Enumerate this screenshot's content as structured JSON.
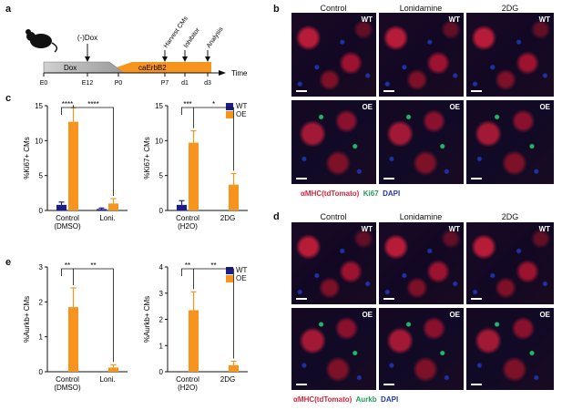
{
  "panels": {
    "a": "a",
    "b": "b",
    "c": "c",
    "d": "d",
    "e": "e"
  },
  "timeline": {
    "dox_marker": "(-)Dox",
    "dox_bar": "Dox",
    "caerbb2_bar": "caErbB2",
    "harvest": "Harvest CMs",
    "inhibitor": "Inhibitor",
    "analysis": "Analysis",
    "time_label": "Time",
    "ticks": [
      "E0",
      "E12",
      "P0",
      "P7",
      "d1",
      "d3"
    ]
  },
  "legend": {
    "wt": "WT",
    "oe": "OE",
    "wt_color": "#1c1c8c",
    "oe_color": "#f7941d"
  },
  "micro_b": {
    "columns": [
      "Control",
      "Lonidamine",
      "2DG"
    ],
    "row_labels": [
      "WT",
      "OE"
    ],
    "caption_red": "αMHC(tdTomato)",
    "caption_green": "Ki67",
    "caption_blue": "DAPI"
  },
  "micro_d": {
    "columns": [
      "Control",
      "Lonidamine",
      "2DG"
    ],
    "row_labels": [
      "WT",
      "OE"
    ],
    "caption_red": "αMHC(tdTomato)",
    "caption_green": "Aurkb",
    "caption_blue": "DAPI"
  },
  "chart_data": [
    {
      "type": "bar",
      "panel": "c-left",
      "ylabel": "%Ki67+ CMs",
      "ylim": [
        0,
        15
      ],
      "yticks": [
        0,
        5,
        10,
        15
      ],
      "categories": [
        "Control\n(DMSO)",
        "Loni."
      ],
      "series": [
        {
          "name": "WT",
          "values": [
            0.8,
            0.2
          ],
          "errors": [
            0.4,
            0.15
          ]
        },
        {
          "name": "OE",
          "values": [
            12.7,
            1.0
          ],
          "errors": [
            2.0,
            0.7
          ]
        }
      ],
      "annotations": [
        "****",
        "****"
      ]
    },
    {
      "type": "bar",
      "panel": "c-right",
      "ylabel": "%Ki67+ CMs",
      "ylim": [
        0,
        15
      ],
      "yticks": [
        0,
        5,
        10,
        15
      ],
      "categories": [
        "Control\n(H2O)",
        "2DG"
      ],
      "series": [
        {
          "name": "WT",
          "values": [
            0.8,
            0
          ],
          "errors": [
            0.6,
            0
          ]
        },
        {
          "name": "OE",
          "values": [
            9.7,
            3.7
          ],
          "errors": [
            1.7,
            1.6
          ]
        }
      ],
      "annotations": [
        "***",
        "*"
      ]
    },
    {
      "type": "bar",
      "panel": "e-left",
      "ylabel": "%Aurkb+ CMs",
      "ylim": [
        0,
        3
      ],
      "yticks": [
        0,
        1,
        2,
        3
      ],
      "categories": [
        "Control\n(DMSO)",
        "Loni."
      ],
      "series": [
        {
          "name": "WT",
          "values": [
            0,
            0
          ],
          "errors": [
            0,
            0
          ]
        },
        {
          "name": "OE",
          "values": [
            1.85,
            0.12
          ],
          "errors": [
            0.55,
            0.08
          ]
        }
      ],
      "annotations": [
        "**",
        "**"
      ]
    },
    {
      "type": "bar",
      "panel": "e-right",
      "ylabel": "%Aurkb+ CMs",
      "ylim": [
        0,
        4
      ],
      "yticks": [
        0,
        1,
        2,
        3,
        4
      ],
      "categories": [
        "Control\n(H2O)",
        "2DG"
      ],
      "series": [
        {
          "name": "WT",
          "values": [
            0,
            0
          ],
          "errors": [
            0,
            0
          ]
        },
        {
          "name": "OE",
          "values": [
            2.35,
            0.25
          ],
          "errors": [
            0.7,
            0.15
          ]
        }
      ],
      "annotations": [
        "**",
        "**"
      ]
    }
  ]
}
